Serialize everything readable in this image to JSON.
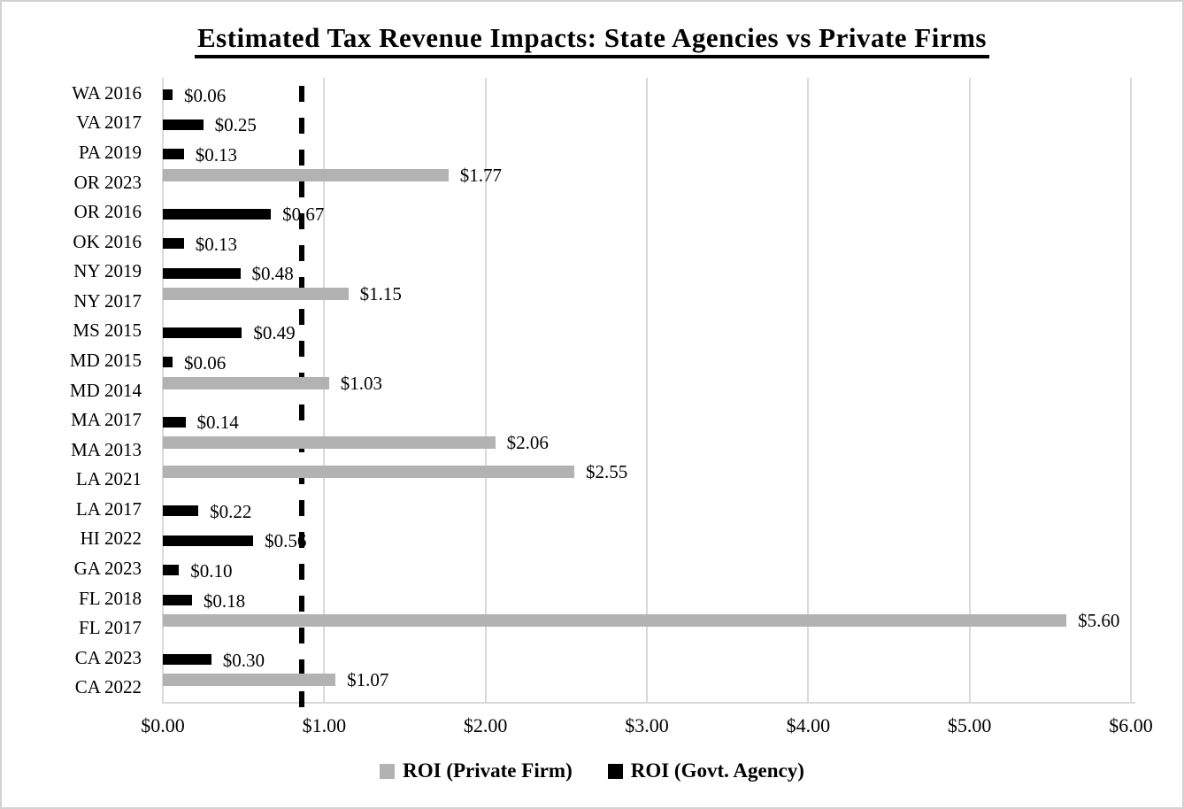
{
  "chart_data": {
    "type": "bar",
    "orientation": "horizontal",
    "title": "Estimated Tax Revenue Impacts: State Agencies vs Private Firms",
    "xlabel": "",
    "ylabel": "",
    "xlim": [
      0,
      6
    ],
    "x_ticks": [
      "$0.00",
      "$1.00",
      "$2.00",
      "$3.00",
      "$4.00",
      "$5.00",
      "$6.00"
    ],
    "x_tick_values": [
      0,
      1,
      2,
      3,
      4,
      5,
      6
    ],
    "gridlines": "vertical",
    "reference_line": {
      "value": 0.86,
      "style": "dashed",
      "color": "#000000"
    },
    "categories": [
      "WA 2016",
      "VA 2017",
      "PA 2019",
      "OR 2023",
      "OR 2016",
      "OK 2016",
      "NY 2019",
      "NY 2017",
      "MS 2015",
      "MD 2015",
      "MD 2014",
      "MA 2017",
      "MA 2013",
      "LA 2021",
      "LA 2017",
      "HI 2022",
      "GA 2023",
      "FL 2018",
      "FL 2017",
      "CA 2023",
      "CA 2022"
    ],
    "series": [
      {
        "name": "ROI (Private Firm)",
        "color": "#b2b2b2",
        "values": [
          0,
          0,
          0,
          1.77,
          0,
          0,
          0,
          1.15,
          0,
          0,
          1.03,
          0,
          2.06,
          2.55,
          0,
          0,
          0,
          0,
          5.6,
          0,
          1.07
        ]
      },
      {
        "name": "ROI (Govt. Agency)",
        "color": "#000000",
        "values": [
          0.06,
          0.25,
          0.13,
          0,
          0.67,
          0.13,
          0.48,
          0,
          0.49,
          0.06,
          0,
          0.14,
          0,
          0,
          0.22,
          0.56,
          0.1,
          0.18,
          0,
          0.3,
          0
        ]
      }
    ],
    "data_labels": [
      "$0.06",
      "$0.25",
      "$0.13",
      "$1.77",
      "$0.67",
      "$0.13",
      "$0.48",
      "$1.15",
      "$0.49",
      "$0.06",
      "$1.03",
      "$0.14",
      "$2.06",
      "$2.55",
      "$0.22",
      "$0.56",
      "$0.10",
      "$0.18",
      "$5.60",
      "$0.30",
      "$1.07"
    ],
    "legend": {
      "position": "bottom",
      "entries": [
        {
          "label": "ROI (Private Firm)",
          "color": "#b2b2b2"
        },
        {
          "label": "ROI (Govt. Agency)",
          "color": "#000000"
        }
      ]
    }
  },
  "colors": {
    "grid": "#d9d9d9",
    "bar_private": "#b2b2b2",
    "bar_govt": "#000000",
    "page_border": "#d2d2d2",
    "text": "#000000"
  }
}
